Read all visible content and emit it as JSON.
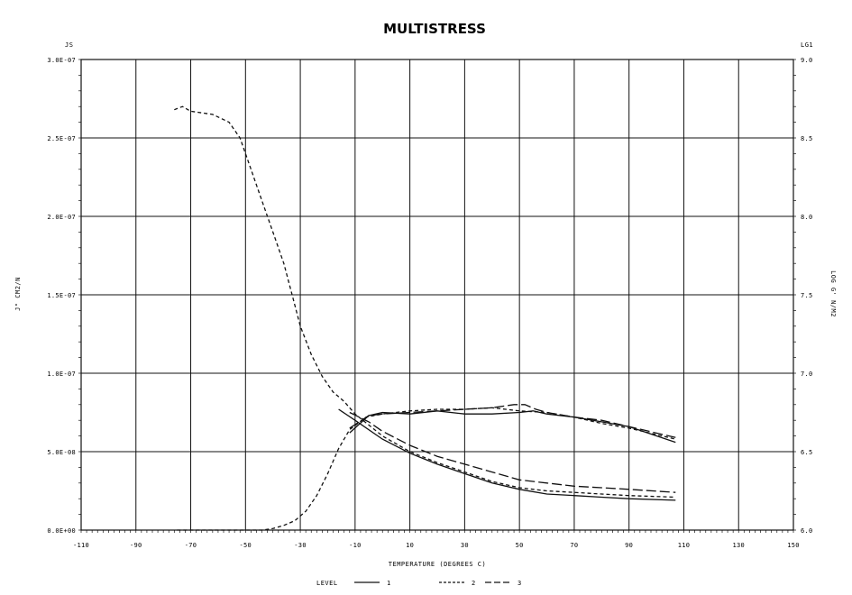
{
  "chart_data": {
    "type": "line",
    "title": "MULTISTRESS",
    "xlabel": "TEMPERATURE (DEGREES C)",
    "ylabel_left": "J\" CM2/N",
    "ylabel_right": "LOG G' N/M2",
    "left_unit_label": "JS",
    "right_unit_label": "LG1",
    "xlim": [
      -110,
      150
    ],
    "ylim_left": [
      0,
      3e-07
    ],
    "ylim_right": [
      6.0,
      9.0
    ],
    "x_ticks": [
      -110,
      -90,
      -70,
      -50,
      -30,
      -10,
      10,
      30,
      50,
      70,
      90,
      110,
      130,
      150
    ],
    "x_tick_labels": [
      "-110",
      "-90",
      "-70",
      "-50",
      "-30",
      "-10",
      "10",
      "30",
      "50",
      "70",
      "90",
      "110",
      "130",
      "150"
    ],
    "y_left_ticks": [
      0,
      5e-08,
      1e-07,
      1.5e-07,
      2e-07,
      2.5e-07,
      3e-07
    ],
    "y_left_tick_labels": [
      "0.0E+00",
      "5.0E-08",
      "1.0E-07",
      "1.5E-07",
      "2.0E-07",
      "2.5E-07",
      "3.0E-07"
    ],
    "y_right_ticks": [
      6.0,
      6.5,
      7.0,
      7.5,
      8.0,
      8.5,
      9.0
    ],
    "y_right_tick_labels": [
      "6.0",
      "6.5",
      "7.0",
      "7.5",
      "8.0",
      "8.5",
      "9.0"
    ],
    "grid": true,
    "legend": {
      "title": "LEVEL",
      "position": "bottom",
      "entries": [
        {
          "label": "1",
          "style": "solid"
        },
        {
          "label": "2",
          "style": "dashed"
        },
        {
          "label": "3",
          "style": "longdash"
        }
      ]
    },
    "series": [
      {
        "name": "1",
        "axis": "left",
        "style": "solid",
        "x": [
          -12,
          -5,
          0,
          10,
          20,
          30,
          40,
          50,
          55,
          60,
          70,
          80,
          90,
          107
        ],
        "y": [
          6.2e-08,
          7.3e-08,
          7.5e-08,
          7.4e-08,
          7.6e-08,
          7.4e-08,
          7.4e-08,
          7.5e-08,
          7.6e-08,
          7.4e-08,
          7.2e-08,
          6.9e-08,
          6.6e-08,
          5.6e-08
        ]
      },
      {
        "name": "2",
        "axis": "left",
        "style": "dashed",
        "x": [
          -75,
          -72,
          -65,
          -58,
          -52,
          -48,
          -44,
          -40,
          -36,
          -32,
          -28,
          -24,
          -20,
          -16,
          -12,
          -6,
          0,
          10,
          20,
          30,
          40,
          50,
          60,
          70,
          80,
          90,
          107
        ],
        "y": [
          0,
          0,
          0,
          0,
          0,
          0,
          0,
          1e-09,
          3e-09,
          6e-09,
          1.2e-08,
          2.2e-08,
          3.6e-08,
          5.2e-08,
          6.4e-08,
          7.2e-08,
          7.4e-08,
          7.6e-08,
          7.7e-08,
          7.7e-08,
          7.8e-08,
          7.6e-08,
          7.5e-08,
          7.2e-08,
          6.8e-08,
          6.5e-08,
          5.8e-08
        ]
      },
      {
        "name": "3",
        "axis": "left",
        "style": "longdash",
        "x": [
          -12,
          -5,
          0,
          10,
          20,
          30,
          40,
          48,
          52,
          56,
          60,
          70,
          80,
          90,
          107
        ],
        "y": [
          6.5e-08,
          7.3e-08,
          7.4e-08,
          7.5e-08,
          7.6e-08,
          7.7e-08,
          7.8e-08,
          8e-08,
          8e-08,
          7.7e-08,
          7.5e-08,
          7.2e-08,
          7e-08,
          6.6e-08,
          5.9e-08
        ]
      },
      {
        "name": "1",
        "axis": "right",
        "style": "solid",
        "x": [
          -16,
          -10,
          0,
          10,
          20,
          30,
          40,
          50,
          60,
          70,
          80,
          90,
          107
        ],
        "y": [
          6.77,
          6.7,
          6.58,
          6.49,
          6.42,
          6.36,
          6.3,
          6.26,
          6.23,
          6.22,
          6.21,
          6.2,
          6.19
        ]
      },
      {
        "name": "2",
        "axis": "right",
        "style": "dashed",
        "x": [
          -76,
          -73,
          -70,
          -62,
          -56,
          -52,
          -48,
          -44,
          -40,
          -36,
          -33,
          -30,
          -26,
          -22,
          -18,
          -14,
          -10,
          0,
          10,
          20,
          30,
          40,
          50,
          60,
          70,
          80,
          90,
          107
        ],
        "y": [
          8.68,
          8.7,
          8.67,
          8.65,
          8.6,
          8.5,
          8.3,
          8.1,
          7.9,
          7.7,
          7.5,
          7.3,
          7.12,
          6.98,
          6.88,
          6.82,
          6.74,
          6.6,
          6.5,
          6.43,
          6.37,
          6.31,
          6.27,
          6.25,
          6.24,
          6.23,
          6.22,
          6.21
        ]
      },
      {
        "name": "3",
        "axis": "right",
        "style": "longdash",
        "x": [
          -12,
          -5,
          0,
          10,
          20,
          30,
          40,
          50,
          60,
          70,
          80,
          90,
          107
        ],
        "y": [
          6.75,
          6.69,
          6.63,
          6.54,
          6.47,
          6.42,
          6.37,
          6.32,
          6.3,
          6.28,
          6.27,
          6.26,
          6.24
        ]
      }
    ]
  }
}
